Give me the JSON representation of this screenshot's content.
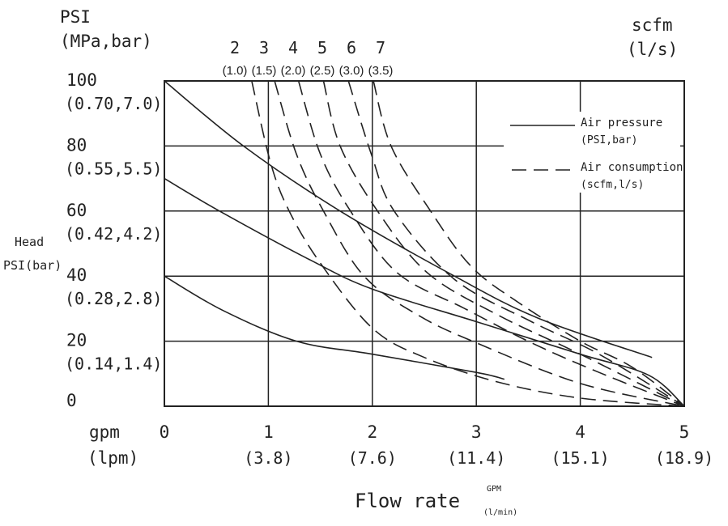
{
  "chart_data": {
    "type": "line",
    "title": "",
    "xlabel": "Flow rate",
    "xlabel_units": [
      "GPM",
      "(l/min)"
    ],
    "xunit_labels": [
      "gpm",
      "(lpm)"
    ],
    "ylabel": [
      "Head",
      "PSI(bar)"
    ],
    "yunit_labels": [
      "PSI",
      "(MPa,bar)"
    ],
    "top_axis_labels": [
      "scfm",
      "(l/s)"
    ],
    "xlim": [
      0,
      5
    ],
    "ylim": [
      0,
      100
    ],
    "grid": true,
    "x_ticks": [
      {
        "value": 0,
        "label": "0",
        "sub": ""
      },
      {
        "value": 1,
        "label": "1",
        "sub": "(3.8)"
      },
      {
        "value": 2,
        "label": "2",
        "sub": "(7.6)"
      },
      {
        "value": 3,
        "label": "3",
        "sub": "(11.4)"
      },
      {
        "value": 4,
        "label": "4",
        "sub": "(15.1)"
      },
      {
        "value": 5,
        "label": "5",
        "sub": "(18.9)"
      }
    ],
    "y_ticks": [
      {
        "value": 100,
        "label": "100",
        "sub": "(0.70,7.0)"
      },
      {
        "value": 80,
        "label": "80",
        "sub": "(0.55,5.5)"
      },
      {
        "value": 60,
        "label": "60",
        "sub": "(0.42,4.2)"
      },
      {
        "value": 40,
        "label": "40",
        "sub": "(0.28,2.8)"
      },
      {
        "value": 20,
        "label": "20",
        "sub": "(0.14,1.4)"
      },
      {
        "value": 0,
        "label": "0",
        "sub": ""
      }
    ],
    "legend": {
      "placement": "top-right",
      "entries": [
        {
          "style": "solid",
          "label": "Air pressure",
          "sub": "(PSI,bar)"
        },
        {
          "style": "dashed",
          "label": "Air consumption",
          "sub": "(scfm,l/s)"
        }
      ]
    },
    "series": [
      {
        "name": "Air pressure 100 PSI",
        "style": "solid",
        "points": [
          [
            0,
            100
          ],
          [
            0.76,
            80
          ],
          [
            1.69,
            60
          ],
          [
            2.79,
            40
          ],
          [
            3.6,
            27
          ],
          [
            4.69,
            15
          ]
        ]
      },
      {
        "name": "Air pressure 70 PSI",
        "style": "solid",
        "points": [
          [
            0,
            70
          ],
          [
            0.53,
            60
          ],
          [
            1.4,
            45
          ],
          [
            2,
            36
          ],
          [
            3,
            26
          ],
          [
            4,
            16
          ],
          [
            4.66,
            9.5
          ],
          [
            5,
            0
          ]
        ]
      },
      {
        "name": "Air pressure 40 PSI",
        "style": "solid",
        "points": [
          [
            0,
            40
          ],
          [
            0.56,
            29.5
          ],
          [
            1.27,
            20
          ],
          [
            2,
            16
          ],
          [
            3,
            10.4
          ],
          [
            3.27,
            8.3
          ]
        ]
      },
      {
        "name": "2 scfm (1.0 l/s)",
        "label": "2",
        "sub": "(1.0)",
        "style": "dashed",
        "points": [
          [
            0.84,
            100
          ],
          [
            1.02,
            75
          ],
          [
            1.2,
            60
          ],
          [
            1.5,
            44
          ],
          [
            2,
            24
          ],
          [
            2.5,
            15
          ],
          [
            3.2,
            7.5
          ],
          [
            4,
            2.5
          ],
          [
            5,
            0
          ]
        ]
      },
      {
        "name": "3 scfm (1.5 l/s)",
        "label": "3",
        "sub": "(1.5)",
        "style": "dashed",
        "points": [
          [
            1.06,
            100
          ],
          [
            1.27,
            77.5
          ],
          [
            1.53,
            60
          ],
          [
            1.92,
            40
          ],
          [
            2.44,
            28
          ],
          [
            3,
            19.5
          ],
          [
            4,
            7
          ],
          [
            5,
            0
          ]
        ]
      },
      {
        "name": "4 scfm (2.0 l/s)",
        "label": "4",
        "sub": "(2.0)",
        "style": "dashed",
        "points": [
          [
            1.29,
            100
          ],
          [
            1.5,
            77.5
          ],
          [
            1.79,
            60
          ],
          [
            2.24,
            41
          ],
          [
            2.89,
            30
          ],
          [
            3.53,
            19.5
          ],
          [
            4.18,
            10.4
          ],
          [
            5,
            0
          ]
        ]
      },
      {
        "name": "5 scfm (2.5 l/s)",
        "label": "5",
        "sub": "(2.5)",
        "style": "dashed",
        "points": [
          [
            1.53,
            100
          ],
          [
            1.69,
            80
          ],
          [
            2.05,
            60
          ],
          [
            2.53,
            41
          ],
          [
            3.21,
            28
          ],
          [
            4,
            16
          ],
          [
            5,
            0
          ]
        ]
      },
      {
        "name": "6 scfm (3.0 l/s)",
        "label": "6",
        "sub": "(3.0)",
        "style": "dashed",
        "points": [
          [
            1.77,
            100
          ],
          [
            1.99,
            77.5
          ],
          [
            2.21,
            60
          ],
          [
            2.79,
            39
          ],
          [
            3.53,
            26
          ],
          [
            4.18,
            16
          ],
          [
            5,
            0
          ]
        ]
      },
      {
        "name": "7 scfm (3.5 l/s)",
        "label": "7",
        "sub": "(3.5)",
        "style": "dashed",
        "points": [
          [
            2.01,
            100
          ],
          [
            2.18,
            80
          ],
          [
            2.56,
            60
          ],
          [
            2.95,
            43
          ],
          [
            3.4,
            32
          ],
          [
            4,
            20
          ],
          [
            4.5,
            12
          ],
          [
            5,
            0
          ]
        ]
      }
    ]
  }
}
